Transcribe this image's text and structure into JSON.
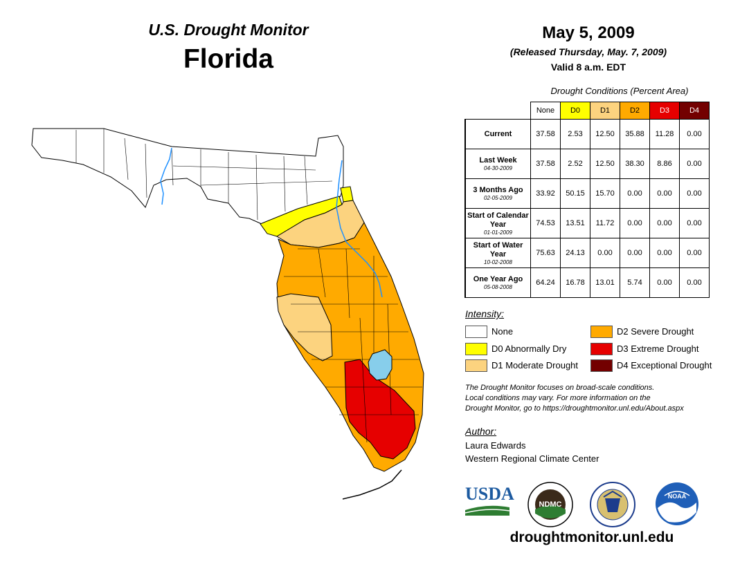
{
  "header": {
    "subtitle": "U.S. Drought Monitor",
    "state": "Florida",
    "date": "May 5, 2009",
    "released": "(Released Thursday, May. 7, 2009)",
    "valid": "Valid 8 a.m. EDT"
  },
  "table": {
    "title": "Drought Conditions (Percent Area)",
    "columns": [
      {
        "label": "None",
        "color": "#ffffff"
      },
      {
        "label": "D0",
        "color": "#ffff00"
      },
      {
        "label": "D1",
        "color": "#fcd37f"
      },
      {
        "label": "D2",
        "color": "#ffaa00"
      },
      {
        "label": "D3",
        "color": "#e60000"
      },
      {
        "label": "D4",
        "color": "#730000"
      }
    ],
    "rows": [
      {
        "label": "Current",
        "date": "",
        "values": [
          "37.58",
          "2.53",
          "12.50",
          "35.88",
          "11.28",
          "0.00"
        ]
      },
      {
        "label": "Last Week",
        "date": "04-30-2009",
        "values": [
          "37.58",
          "2.52",
          "12.50",
          "38.30",
          "8.86",
          "0.00"
        ]
      },
      {
        "label": "3 Months Ago",
        "date": "02-05-2009",
        "values": [
          "33.92",
          "50.15",
          "15.70",
          "0.00",
          "0.00",
          "0.00"
        ]
      },
      {
        "label": "Start of Calendar Year",
        "date": "01-01-2009",
        "values": [
          "74.53",
          "13.51",
          "11.72",
          "0.00",
          "0.00",
          "0.00"
        ]
      },
      {
        "label": "Start of Water Year",
        "date": "10-02-2008",
        "values": [
          "75.63",
          "24.13",
          "0.00",
          "0.00",
          "0.00",
          "0.00"
        ]
      },
      {
        "label": "One Year Ago",
        "date": "05-08-2008",
        "values": [
          "64.24",
          "16.78",
          "13.01",
          "5.74",
          "0.00",
          "0.00"
        ]
      }
    ]
  },
  "legend": {
    "title": "Intensity:",
    "items": [
      {
        "label": "None",
        "color": "#ffffff"
      },
      {
        "label": "D0 Abnormally Dry",
        "color": "#ffff00"
      },
      {
        "label": "D1 Moderate Drought",
        "color": "#fcd37f"
      },
      {
        "label": "D2 Severe Drought",
        "color": "#ffaa00"
      },
      {
        "label": "D3 Extreme Drought",
        "color": "#e60000"
      },
      {
        "label": "D4 Exceptional Drought",
        "color": "#730000"
      }
    ]
  },
  "note": {
    "line1": "The Drought Monitor focuses on broad-scale conditions.",
    "line2": "Local conditions may vary. For more information on the",
    "line3": "Drought Monitor, go to https://droughtmonitor.unl.edu/About.aspx"
  },
  "author": {
    "title": "Author:",
    "name": "Laura Edwards",
    "org": "Western Regional Climate Center"
  },
  "logos": {
    "usda": "USDA",
    "ndmc": "NDMC",
    "noaa": "NOAA"
  },
  "website": "droughtmonitor.unl.edu"
}
